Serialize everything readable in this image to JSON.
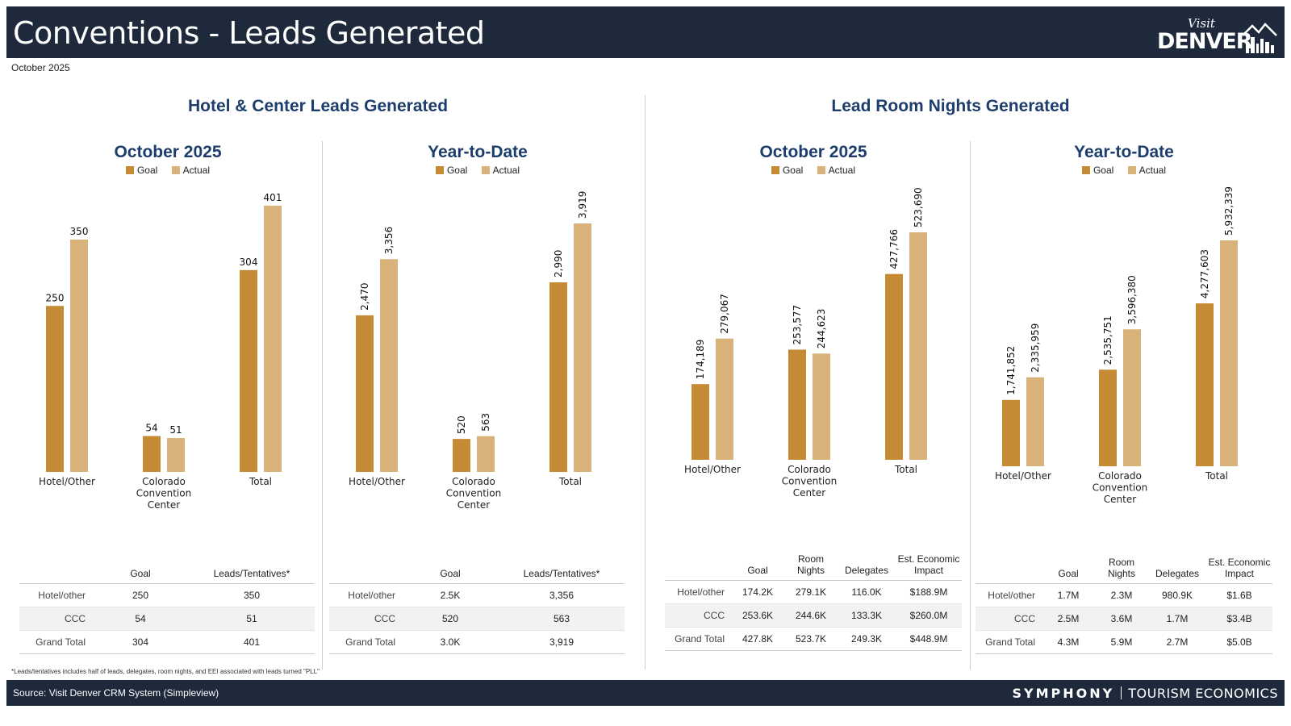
{
  "header": {
    "title": "Conventions - Leads Generated",
    "subtitle_date": "October 2025"
  },
  "logo": {
    "script": "Visit",
    "wordmark": "DENVER"
  },
  "colors": {
    "goal": "#c48a34",
    "actual": "#d9b27a",
    "header_bg": "#1e2a3b",
    "title_blue": "#1d3d6c"
  },
  "sections": [
    {
      "title": "Hotel & Center Leads Generated"
    },
    {
      "title": "Lead Room Nights Generated"
    }
  ],
  "legend": {
    "goal": "Goal",
    "actual": "Actual"
  },
  "chart_data": [
    {
      "type": "bar",
      "title": "October 2025",
      "categories": [
        "Hotel/Other",
        "Colorado Convention Center",
        "Total"
      ],
      "series": [
        {
          "name": "Goal",
          "values": [
            250,
            54,
            304
          ],
          "labels": [
            "250",
            "54",
            "304"
          ]
        },
        {
          "name": "Actual",
          "values": [
            350,
            51,
            401
          ],
          "labels": [
            "350",
            "51",
            "401"
          ]
        }
      ],
      "ylim": [
        0,
        401
      ],
      "label_rotation": "horizontal"
    },
    {
      "type": "bar",
      "title": "Year-to-Date",
      "categories": [
        "Hotel/Other",
        "Colorado Convention Center",
        "Total"
      ],
      "series": [
        {
          "name": "Goal",
          "values": [
            2470,
            520,
            2990
          ],
          "labels": [
            "2,470",
            "520",
            "2,990"
          ]
        },
        {
          "name": "Actual",
          "values": [
            3356,
            563,
            3919
          ],
          "labels": [
            "3,356",
            "563",
            "3,919"
          ]
        }
      ],
      "ylim": [
        0,
        3919
      ],
      "label_rotation": "vertical"
    },
    {
      "type": "bar",
      "title": "October 2025",
      "categories": [
        "Hotel/Other",
        "Colorado Convention Center",
        "Total"
      ],
      "series": [
        {
          "name": "Goal",
          "values": [
            174189,
            253577,
            427766
          ],
          "labels": [
            "174,189",
            "253,577",
            "427,766"
          ]
        },
        {
          "name": "Actual",
          "values": [
            279067,
            244623,
            523690
          ],
          "labels": [
            "279,067",
            "244,623",
            "523,690"
          ]
        }
      ],
      "ylim": [
        0,
        523690
      ],
      "label_rotation": "vertical"
    },
    {
      "type": "bar",
      "title": "Year-to-Date",
      "categories": [
        "Hotel/Other",
        "Colorado Convention Center",
        "Total"
      ],
      "series": [
        {
          "name": "Goal",
          "values": [
            1741852,
            2535751,
            4277603
          ],
          "labels": [
            "1,741,852",
            "2,535,751",
            "4,277,603"
          ]
        },
        {
          "name": "Actual",
          "values": [
            2335959,
            3596380,
            5932339
          ],
          "labels": [
            "2,335,959",
            "3,596,380",
            "5,932,339"
          ]
        }
      ],
      "ylim": [
        0,
        5932339
      ],
      "label_rotation": "vertical"
    }
  ],
  "tables": [
    {
      "columns": [
        "",
        "Goal",
        "Leads/Tentatives*"
      ],
      "rows": [
        [
          "Hotel/other",
          "250",
          "350"
        ],
        [
          "CCC",
          "54",
          "51"
        ],
        [
          "Grand Total",
          "304",
          "401"
        ]
      ]
    },
    {
      "columns": [
        "",
        "Goal",
        "Leads/Tentatives*"
      ],
      "rows": [
        [
          "Hotel/other",
          "2.5K",
          "3,356"
        ],
        [
          "CCC",
          "520",
          "563"
        ],
        [
          "Grand Total",
          "3.0K",
          "3,919"
        ]
      ]
    },
    {
      "columns": [
        "",
        "Goal",
        "Room Nights",
        "Delegates",
        "Est. Economic Impact"
      ],
      "rows": [
        [
          "Hotel/other",
          "174.2K",
          "279.1K",
          "116.0K",
          "$188.9M"
        ],
        [
          "CCC",
          "253.6K",
          "244.6K",
          "133.3K",
          "$260.0M"
        ],
        [
          "Grand Total",
          "427.8K",
          "523.7K",
          "249.3K",
          "$448.9M"
        ]
      ]
    },
    {
      "columns": [
        "",
        "Goal",
        "Room Nights",
        "Delegates",
        "Est. Economic Impact"
      ],
      "rows": [
        [
          "Hotel/other",
          "1.7M",
          "2.3M",
          "980.9K",
          "$1.6B"
        ],
        [
          "CCC",
          "2.5M",
          "3.6M",
          "1.7M",
          "$3.4B"
        ],
        [
          "Grand Total",
          "4.3M",
          "5.9M",
          "2.7M",
          "$5.0B"
        ]
      ]
    }
  ],
  "footnote": "*Leads/tentatives includes half of leads, delegates, room nights, and EEI associated with leads turned \"PLL\"",
  "footer": {
    "source": "Source: Visit Denver CRM System (Simpleview)",
    "brand_main": "SYMPHONY",
    "brand_sub": "TOURISM ECONOMICS"
  }
}
